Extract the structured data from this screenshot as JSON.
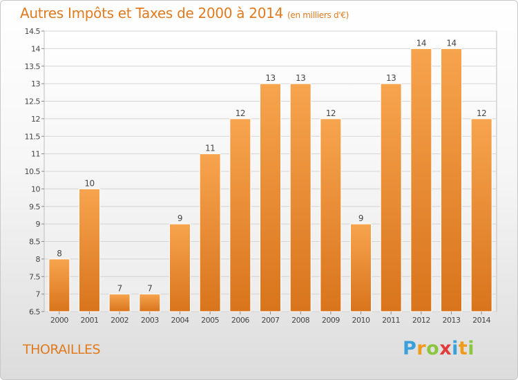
{
  "title": "Autres Impôts et Taxes de 2000 à 2014",
  "unit": "(en milliers d'€)",
  "commune": "THORAILLES",
  "logo": {
    "letters": [
      "P",
      "r",
      "o",
      "x",
      "i",
      "t",
      "i"
    ],
    "colors": [
      "#3aa0dc",
      "#f09a1c",
      "#8cc63f",
      "#e03c3c",
      "#3aa0dc",
      "#f09a1c",
      "#8cc63f"
    ]
  },
  "colors": {
    "bar_top": "#f7a44e",
    "bar_bottom": "#d8741c",
    "title": "#e07a1e"
  },
  "chart_data": {
    "type": "bar",
    "categories": [
      "2000",
      "2001",
      "2002",
      "2003",
      "2004",
      "2005",
      "2006",
      "2007",
      "2008",
      "2009",
      "2010",
      "2011",
      "2012",
      "2013",
      "2014"
    ],
    "values": [
      8,
      10,
      7,
      7,
      9,
      11,
      12,
      13,
      13,
      12,
      9,
      13,
      14,
      14,
      12
    ],
    "value_labels": [
      "8",
      "10",
      "7",
      "7",
      "9",
      "11",
      "12",
      "13",
      "13",
      "12",
      "9",
      "13",
      "14",
      "14",
      "12"
    ],
    "ylim": [
      6.5,
      14.5
    ],
    "yticks": [
      6.5,
      7,
      7.5,
      8,
      8.5,
      9,
      9.5,
      10,
      10.5,
      11,
      11.5,
      12,
      12.5,
      13,
      13.5,
      14,
      14.5
    ],
    "ytick_labels": [
      "6.5",
      "7",
      "7.5",
      "8",
      "8.5",
      "9",
      "9.5",
      "10",
      "10.5",
      "11",
      "11.5",
      "12",
      "12.5",
      "13",
      "13.5",
      "14",
      "14.5"
    ],
    "grid": "horizontal"
  }
}
